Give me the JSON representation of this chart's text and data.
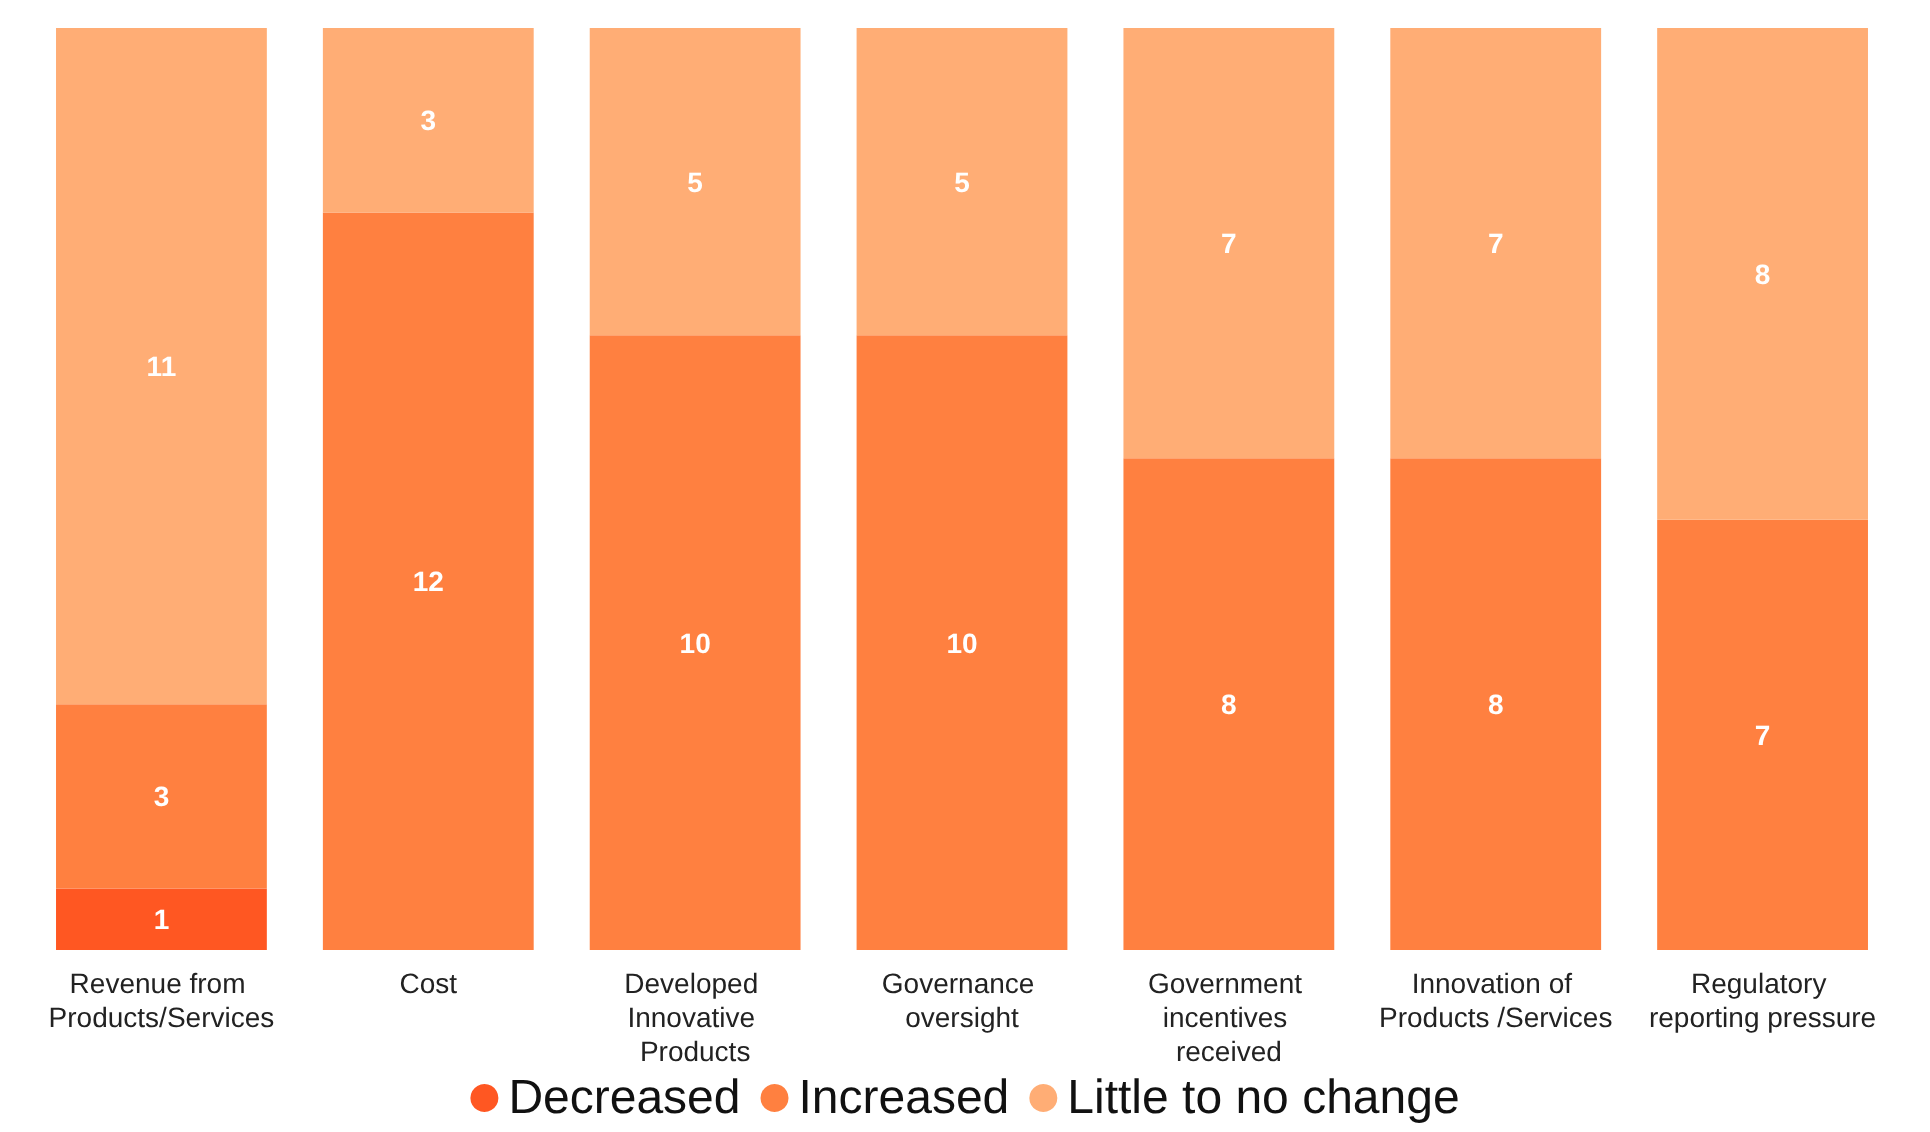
{
  "chart_data": {
    "type": "bar",
    "stacked": true,
    "data_labels": true,
    "tick_labels": "x",
    "grid": false,
    "legend": "bottom",
    "ylim": [
      0,
      15
    ],
    "categories": [
      "Revenue from Products/Services",
      "Cost",
      "Developed Innovative Products",
      "Governance oversight",
      "Government incentives received",
      "Innovation of Products /Services",
      "Regulatory reporting pressure"
    ],
    "series": [
      {
        "name": "Decreased",
        "color": "#ff5722",
        "values": [
          1,
          null,
          null,
          null,
          null,
          null,
          null
        ]
      },
      {
        "name": "Increased",
        "color": "#ff8040",
        "values": [
          3,
          12,
          10,
          10,
          8,
          8,
          7
        ]
      },
      {
        "name": "Little to no change",
        "color": "#ffad75",
        "values": [
          11,
          3,
          5,
          5,
          7,
          7,
          8
        ]
      }
    ]
  }
}
